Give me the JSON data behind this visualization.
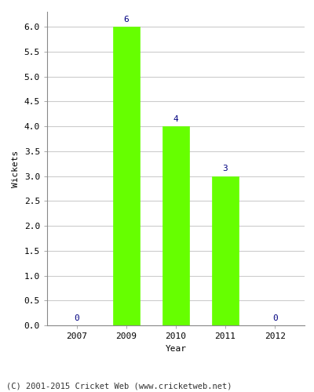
{
  "categories": [
    "2007",
    "2009",
    "2010",
    "2011",
    "2012"
  ],
  "values": [
    0,
    6,
    4,
    3,
    0
  ],
  "bar_color": "#66ff00",
  "bar_edgecolor": "#66ff00",
  "label_color": "#000080",
  "xlabel": "Year",
  "ylabel": "Wickets",
  "ylim": [
    0,
    6.3
  ],
  "yticks": [
    0.0,
    0.5,
    1.0,
    1.5,
    2.0,
    2.5,
    3.0,
    3.5,
    4.0,
    4.5,
    5.0,
    5.5,
    6.0
  ],
  "footnote": "(C) 2001-2015 Cricket Web (www.cricketweb.net)",
  "background_color": "#ffffff",
  "grid_color": "#cccccc",
  "bar_width": 0.55,
  "label_fontsize": 8,
  "axis_fontsize": 8,
  "footnote_fontsize": 7.5
}
